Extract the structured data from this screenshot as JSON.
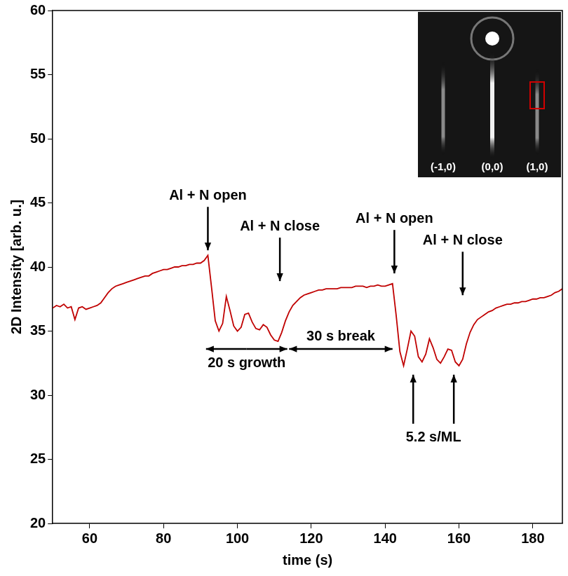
{
  "chart_data": {
    "type": "line",
    "x_label": "time (s)",
    "y_label": "2D Intensity [arb. u.]",
    "color": "#c00000",
    "xlim": [
      50,
      188
    ],
    "xticks": [
      60,
      80,
      100,
      120,
      140,
      160,
      180
    ],
    "ylim": [
      20,
      60
    ],
    "yticks": [
      20,
      25,
      30,
      35,
      40,
      45,
      50,
      55,
      60
    ],
    "grid": false,
    "x": [
      50,
      51,
      52,
      53,
      54,
      55,
      56,
      57,
      58,
      59,
      60,
      61,
      62,
      63,
      64,
      65,
      66,
      67,
      68,
      69,
      70,
      71,
      72,
      73,
      74,
      75,
      76,
      77,
      78,
      79,
      80,
      81,
      82,
      83,
      84,
      85,
      86,
      87,
      88,
      89,
      90,
      91,
      92,
      93,
      94,
      95,
      96,
      97,
      98,
      99,
      100,
      101,
      102,
      103,
      104,
      105,
      106,
      107,
      108,
      109,
      110,
      111,
      112,
      113,
      114,
      115,
      116,
      117,
      118,
      119,
      120,
      121,
      122,
      123,
      124,
      125,
      126,
      127,
      128,
      129,
      130,
      131,
      132,
      133,
      134,
      135,
      136,
      137,
      138,
      139,
      140,
      141,
      142,
      143,
      144,
      145,
      146,
      147,
      148,
      149,
      150,
      151,
      152,
      153,
      154,
      155,
      156,
      157,
      158,
      159,
      160,
      161,
      162,
      163,
      164,
      165,
      166,
      167,
      168,
      169,
      170,
      171,
      172,
      173,
      174,
      175,
      176,
      177,
      178,
      179,
      180,
      181,
      182,
      183,
      184,
      185,
      186,
      187,
      188
    ],
    "values": [
      36.8,
      37.0,
      36.9,
      37.1,
      36.8,
      36.9,
      35.9,
      36.8,
      36.9,
      36.7,
      36.8,
      36.9,
      37.0,
      37.2,
      37.6,
      38.0,
      38.3,
      38.5,
      38.6,
      38.7,
      38.8,
      38.9,
      39.0,
      39.1,
      39.2,
      39.3,
      39.3,
      39.5,
      39.6,
      39.7,
      39.8,
      39.8,
      39.9,
      40.0,
      40.0,
      40.1,
      40.1,
      40.2,
      40.2,
      40.3,
      40.3,
      40.5,
      40.9,
      38.4,
      35.8,
      35.0,
      35.6,
      37.7,
      36.6,
      35.4,
      35.0,
      35.3,
      36.3,
      36.4,
      35.7,
      35.2,
      35.1,
      35.5,
      35.3,
      34.7,
      34.3,
      34.2,
      34.9,
      35.8,
      36.5,
      37.0,
      37.3,
      37.6,
      37.8,
      37.9,
      38.0,
      38.1,
      38.2,
      38.2,
      38.3,
      38.3,
      38.3,
      38.3,
      38.4,
      38.4,
      38.4,
      38.4,
      38.5,
      38.5,
      38.5,
      38.4,
      38.5,
      38.5,
      38.6,
      38.5,
      38.5,
      38.6,
      38.7,
      36.2,
      33.4,
      32.3,
      33.6,
      35.0,
      34.6,
      33.0,
      32.6,
      33.2,
      34.4,
      33.7,
      32.8,
      32.5,
      33.0,
      33.6,
      33.5,
      32.6,
      32.3,
      32.8,
      34.0,
      34.9,
      35.5,
      35.9,
      36.1,
      36.3,
      36.5,
      36.6,
      36.8,
      36.9,
      37.0,
      37.1,
      37.1,
      37.2,
      37.2,
      37.3,
      37.3,
      37.4,
      37.5,
      37.5,
      37.6,
      37.6,
      37.7,
      37.8,
      38.0,
      38.1,
      38.3
    ],
    "annotations": [
      {
        "text": "Al + N open",
        "x": 92,
        "y": 41.3,
        "arrow": "down"
      },
      {
        "text": "Al + N close",
        "x": 111.5,
        "y": 38.9,
        "arrow": "down"
      },
      {
        "text": "Al + N open",
        "x": 142.5,
        "y": 39.5,
        "arrow": "down"
      },
      {
        "text": "Al + N close",
        "x": 161,
        "y": 37.8,
        "arrow": "down"
      },
      {
        "text": "20 s growth",
        "x": [
          91.5,
          113.5
        ],
        "y": 33.6,
        "arrow": "both",
        "side": "below"
      },
      {
        "text": "30 s break",
        "x": [
          114,
          142
        ],
        "y": 33.6,
        "arrow": "both",
        "side": "above"
      },
      {
        "text": "5.2 s/ML",
        "x": [
          147.6,
          158.6
        ],
        "y": 31.6,
        "arrow": "up"
      }
    ],
    "inset": {
      "labels": [
        "(-1,0)",
        "(0,0)",
        "(1,0)"
      ]
    }
  }
}
